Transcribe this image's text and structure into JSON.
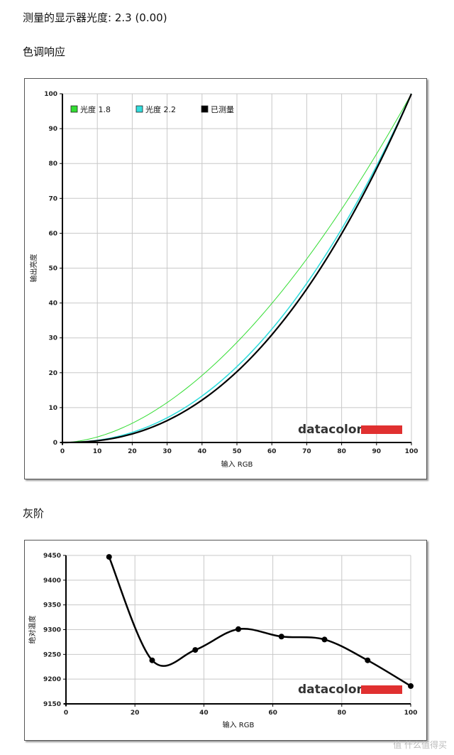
{
  "header": {
    "measured_gamma": "测量的显示器光度:  2.3 (0.00)",
    "section1_title": "色调响应",
    "section2_title": "灰阶"
  },
  "logo": {
    "text": "datacolor",
    "bar_color": "#e03030"
  },
  "watermark": "值 什么值得买",
  "chart_data": [
    {
      "type": "line",
      "xlabel": "输入 RGB",
      "ylabel": "输出亮度",
      "xlim": [
        0,
        100
      ],
      "ylim": [
        0,
        100
      ],
      "xticks": [
        0,
        10,
        20,
        30,
        40,
        50,
        60,
        70,
        80,
        90,
        100
      ],
      "yticks": [
        0,
        10,
        20,
        30,
        40,
        50,
        60,
        70,
        80,
        90,
        100
      ],
      "grid": true,
      "legend_position": "top-left",
      "series": [
        {
          "name": "光度 1.8",
          "color": "#33dd33",
          "width": 1,
          "gamma": 1.8,
          "x": [
            0,
            10,
            20,
            30,
            40,
            50,
            60,
            70,
            80,
            90,
            100
          ],
          "values": [
            0,
            1.6,
            5.5,
            11.5,
            19.2,
            28.7,
            39.9,
            52.6,
            66.9,
            82.7,
            100
          ]
        },
        {
          "name": "光度 2.2",
          "color": "#33dddd",
          "width": 1.6,
          "gamma": 2.2,
          "x": [
            0,
            10,
            20,
            30,
            40,
            50,
            60,
            70,
            80,
            90,
            100
          ],
          "values": [
            0,
            0.6,
            2.9,
            7.1,
            13.3,
            21.8,
            32.5,
            45.6,
            61.2,
            79.3,
            100
          ]
        },
        {
          "name": "已测量",
          "color": "#000000",
          "width": 2.2,
          "gamma": 2.3,
          "x": [
            0,
            10,
            20,
            30,
            40,
            50,
            60,
            70,
            80,
            90,
            100
          ],
          "values": [
            0,
            0.5,
            2.5,
            6.3,
            12.2,
            20.3,
            30.9,
            44.0,
            59.8,
            78.5,
            100
          ]
        }
      ]
    },
    {
      "type": "line",
      "xlabel": "输入 RGB",
      "ylabel": "绝对温度",
      "xlim": [
        0,
        100
      ],
      "ylim": [
        9150,
        9450
      ],
      "xticks": [
        0,
        20,
        40,
        60,
        80,
        100
      ],
      "yticks": [
        9150,
        9200,
        9250,
        9300,
        9350,
        9400,
        9450
      ],
      "grid": true,
      "series": [
        {
          "name": "",
          "color": "#000000",
          "x": [
            12.5,
            25,
            37.5,
            50,
            62.5,
            75,
            87.5,
            100
          ],
          "values": [
            9447,
            9238,
            9259,
            9301,
            9286,
            9280,
            9238,
            9186
          ]
        }
      ]
    }
  ]
}
